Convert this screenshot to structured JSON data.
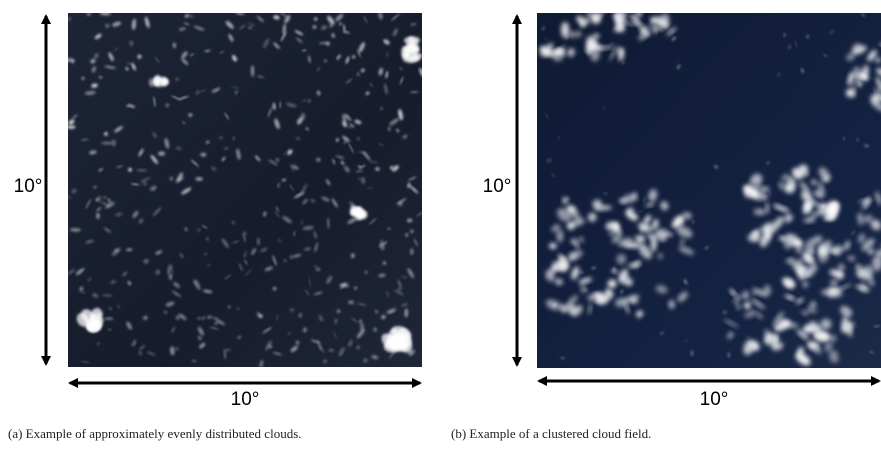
{
  "panels": [
    {
      "height_label": "10°",
      "width_label": "10°",
      "caption": "(a) Example of approximately evenly distributed clouds."
    },
    {
      "height_label": "10°",
      "width_label": "10°",
      "caption": "(b) Example of a clustered cloud field."
    }
  ]
}
